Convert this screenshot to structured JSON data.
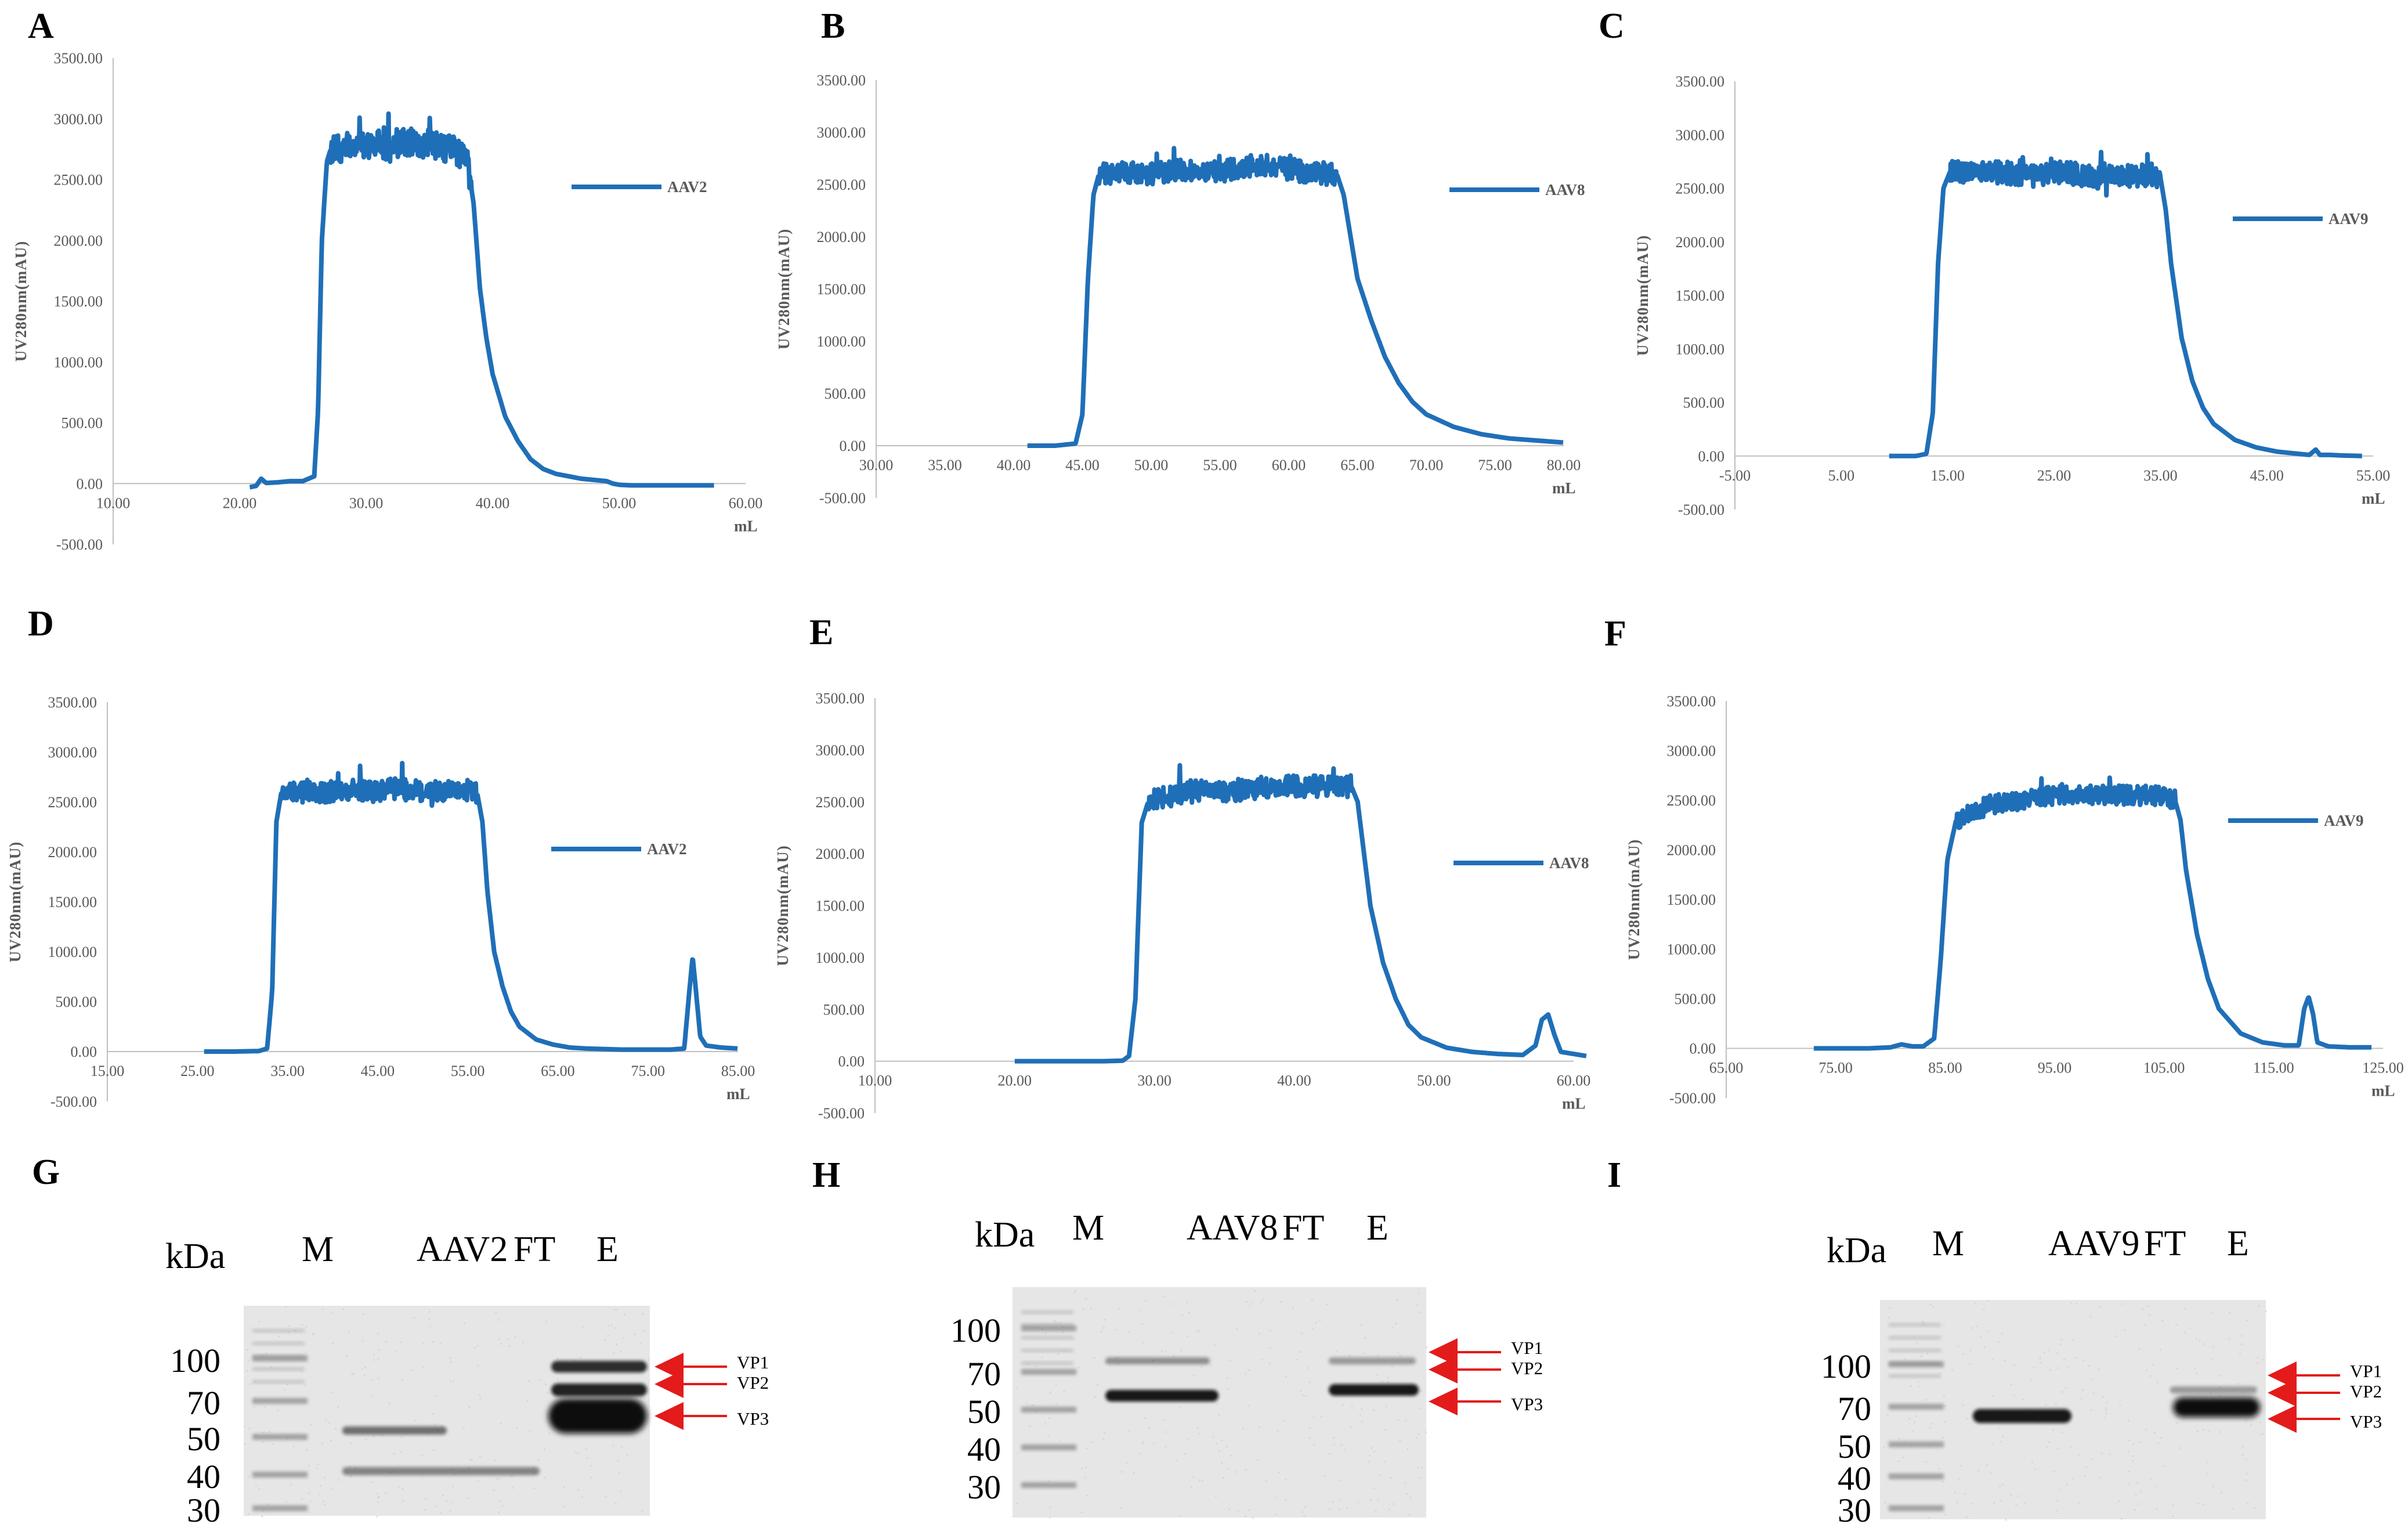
{
  "chart_data": [
    {
      "panel": "A",
      "type": "line",
      "xlabel": "mL",
      "ylabel": "UV280nm(mAU)",
      "xlim": [
        10,
        60
      ],
      "ylim": [
        -500,
        3500
      ],
      "xticks": [
        "10.00",
        "20.00",
        "30.00",
        "40.00",
        "50.00",
        "60.00"
      ],
      "yticks": [
        "-500.00",
        "0.00",
        "500.00",
        "1000.00",
        "1500.00",
        "2000.00",
        "2500.00",
        "3000.00",
        "3500.00"
      ],
      "legend": "right",
      "series": [
        {
          "name": "AAV2",
          "color": "#1f6fb8",
          "x": [
            20.8,
            21.3,
            21.7,
            22.1,
            23,
            24,
            25,
            25.9,
            26.2,
            26.5,
            26.9,
            27.2,
            28,
            29,
            30,
            31,
            32,
            33,
            34,
            35,
            36,
            37,
            38,
            38.5,
            39,
            39.5,
            40,
            41,
            42,
            43,
            44,
            45,
            46,
            47,
            48,
            49,
            49.5,
            50,
            51,
            52,
            54,
            56,
            57.5
          ],
          "y": [
            -30,
            -20,
            40,
            5,
            10,
            20,
            20,
            60,
            600,
            2000,
            2650,
            2750,
            2750,
            2800,
            2780,
            2800,
            2750,
            2820,
            2780,
            2800,
            2760,
            2750,
            2650,
            2300,
            1600,
            1200,
            900,
            550,
            350,
            200,
            120,
            80,
            60,
            40,
            30,
            20,
            0,
            -10,
            -15,
            -15,
            -15,
            -15,
            -15
          ],
          "noise_from": 27.2,
          "noise_to": 38.3,
          "noise_amp": 150
        }
      ]
    },
    {
      "panel": "B",
      "type": "line",
      "xlabel": "mL",
      "ylabel": "UV280nm(mAU)",
      "xlim": [
        30,
        80
      ],
      "ylim": [
        -500,
        3500
      ],
      "xticks": [
        "30.00",
        "35.00",
        "40.00",
        "45.00",
        "50.00",
        "55.00",
        "60.00",
        "65.00",
        "70.00",
        "75.00",
        "80.00"
      ],
      "yticks": [
        "-500.00",
        "0.00",
        "500.00",
        "1000.00",
        "1500.00",
        "2000.00",
        "2500.00",
        "3000.00",
        "3500.00"
      ],
      "legend": "right",
      "series": [
        {
          "name": "AAV8",
          "color": "#1f6fb8",
          "x": [
            41,
            43,
            44.5,
            45,
            45.4,
            45.8,
            46.2,
            47,
            48,
            50,
            52,
            54,
            56,
            58,
            60,
            62,
            63.5,
            64,
            64.5,
            65,
            66,
            67,
            68,
            69,
            70,
            72,
            74,
            76,
            78,
            80
          ],
          "y": [
            0,
            0,
            20,
            300,
            1600,
            2400,
            2600,
            2600,
            2620,
            2600,
            2650,
            2600,
            2650,
            2700,
            2650,
            2600,
            2600,
            2400,
            2000,
            1600,
            1200,
            850,
            600,
            420,
            300,
            180,
            110,
            70,
            50,
            30
          ],
          "noise_from": 46.2,
          "noise_to": 63.5,
          "noise_amp": 140
        }
      ]
    },
    {
      "panel": "C",
      "type": "line",
      "xlabel": "mL",
      "ylabel": "UV280nm(mAU)",
      "xlim": [
        -5,
        55
      ],
      "ylim": [
        -500,
        3500
      ],
      "xticks": [
        "-5.00",
        "5.00",
        "15.00",
        "25.00",
        "35.00",
        "45.00",
        "55.00"
      ],
      "yticks": [
        "-500.00",
        "0.00",
        "500.00",
        "1000.00",
        "1500.00",
        "2000.00",
        "2500.00",
        "3000.00",
        "3500.00"
      ],
      "legend": "right",
      "series": [
        {
          "name": "AAV9",
          "color": "#1f6fb8",
          "x": [
            9.5,
            12,
            13,
            13.6,
            14.1,
            14.6,
            15.2,
            17,
            20,
            23,
            26,
            29,
            32,
            34,
            35,
            35.5,
            36,
            37,
            38,
            39,
            40,
            42,
            44,
            46,
            48,
            49,
            49.6,
            50,
            51,
            52,
            54
          ],
          "y": [
            0,
            0,
            20,
            400,
            1800,
            2500,
            2650,
            2650,
            2650,
            2620,
            2650,
            2600,
            2620,
            2620,
            2600,
            2300,
            1800,
            1100,
            700,
            450,
            300,
            150,
            80,
            40,
            20,
            10,
            60,
            10,
            10,
            5,
            0
          ],
          "noise_from": 15.2,
          "noise_to": 35,
          "noise_amp": 140
        }
      ]
    },
    {
      "panel": "D",
      "type": "line",
      "xlabel": "mL",
      "ylabel": "UV280nm(mAU)",
      "xlim": [
        15,
        90
      ],
      "ylim": [
        -500,
        3500
      ],
      "xticks": [
        "15.00",
        "25.00",
        "35.00",
        "45.00",
        "55.00",
        "65.00",
        "75.00",
        "85.00"
      ],
      "yticks": [
        "-500.00",
        "0.00",
        "500.00",
        "1000.00",
        "1500.00",
        "2000.00",
        "2500.00",
        "3000.00",
        "3500.00"
      ],
      "legend": "right",
      "series": [
        {
          "name": "AAV2",
          "color": "#1f6fb8",
          "x": [
            26.5,
            30,
            33,
            34,
            34.6,
            35.1,
            35.7,
            38,
            41,
            44,
            47,
            50,
            53,
            56,
            59,
            59.6,
            60.2,
            61,
            62,
            63,
            64,
            66,
            68,
            70,
            72,
            74,
            76,
            78,
            80,
            82,
            83.6,
            84.2,
            84.6,
            85,
            85.5,
            86.2,
            88,
            90
          ],
          "y": [
            0,
            0,
            5,
            30,
            600,
            2300,
            2600,
            2600,
            2600,
            2620,
            2600,
            2650,
            2600,
            2620,
            2580,
            2300,
            1600,
            1000,
            650,
            400,
            250,
            120,
            70,
            40,
            30,
            25,
            20,
            20,
            20,
            20,
            30,
            600,
            950,
            600,
            150,
            60,
            40,
            30
          ],
          "noise_from": 35.7,
          "noise_to": 59,
          "noise_amp": 140
        }
      ]
    },
    {
      "panel": "E",
      "type": "line",
      "xlabel": "mL",
      "ylabel": "UV280nm(mAU)",
      "xlim": [
        10,
        65
      ],
      "ylim": [
        -500,
        3500
      ],
      "xticks": [
        "10.00",
        "20.00",
        "30.00",
        "40.00",
        "50.00",
        "60.00"
      ],
      "yticks": [
        "-500.00",
        "0.00",
        "500.00",
        "1000.00",
        "1500.00",
        "2000.00",
        "2500.00",
        "3000.00",
        "3500.00"
      ],
      "legend": "right",
      "series": [
        {
          "name": "AAV8",
          "color": "#1f6fb8",
          "x": [
            21,
            24,
            28,
            29.5,
            30,
            30.5,
            31,
            31.5,
            33,
            35,
            38,
            41,
            44,
            46,
            47.5,
            48,
            48.5,
            49,
            50,
            51,
            52,
            53,
            55,
            57,
            59,
            61,
            62,
            62.5,
            63,
            63.5,
            64,
            66
          ],
          "y": [
            0,
            0,
            0,
            5,
            50,
            600,
            2300,
            2500,
            2550,
            2600,
            2600,
            2650,
            2650,
            2650,
            2650,
            2500,
            2000,
            1500,
            950,
            600,
            350,
            230,
            130,
            90,
            70,
            60,
            150,
            400,
            450,
            250,
            90,
            50
          ],
          "noise_from": 31.5,
          "noise_to": 47.5,
          "noise_amp": 140
        }
      ]
    },
    {
      "panel": "F",
      "type": "line",
      "xlabel": "mL",
      "ylabel": "UV280nm(mAU)",
      "xlim": [
        65,
        125
      ],
      "ylim": [
        -500,
        3500
      ],
      "xticks": [
        "65.00",
        "75.00",
        "85.00",
        "95.00",
        "105.00",
        "115.00",
        "125.00"
      ],
      "yticks": [
        "-500.00",
        "0.00",
        "500.00",
        "1000.00",
        "1500.00",
        "2000.00",
        "2500.00",
        "3000.00",
        "3500.00"
      ],
      "legend": "right",
      "series": [
        {
          "name": "AAV9",
          "color": "#1f6fb8",
          "x": [
            73,
            78,
            80,
            81,
            82,
            83,
            84,
            84.6,
            85.2,
            86,
            89,
            92,
            95,
            98,
            101,
            104,
            106,
            106.5,
            107,
            108,
            109,
            110,
            112,
            114,
            116,
            117.3,
            117.8,
            118.2,
            118.6,
            119,
            120,
            122,
            124
          ],
          "y": [
            0,
            0,
            10,
            40,
            20,
            20,
            100,
            900,
            1900,
            2300,
            2450,
            2500,
            2550,
            2550,
            2550,
            2550,
            2500,
            2300,
            1800,
            1150,
            700,
            400,
            150,
            60,
            30,
            30,
            400,
            520,
            350,
            60,
            20,
            10,
            10
          ],
          "noise_from": 86,
          "noise_to": 106,
          "noise_amp": 130
        }
      ]
    }
  ],
  "panels": {
    "A": "A",
    "B": "B",
    "C": "C",
    "D": "D",
    "E": "E",
    "F": "F",
    "G": "G",
    "H": "H",
    "I": "I"
  },
  "blots": [
    {
      "panel": "G",
      "unit": "kDa",
      "lanes": [
        "M",
        "AAV2",
        "FT",
        "E"
      ],
      "markers": [
        "100",
        "70",
        "50",
        "40",
        "30"
      ],
      "bands": [
        "VP1",
        "VP2",
        "VP3"
      ]
    },
    {
      "panel": "H",
      "unit": "kDa",
      "lanes": [
        "M",
        "AAV8",
        "FT",
        "E"
      ],
      "markers": [
        "100",
        "70",
        "50",
        "40",
        "30"
      ],
      "bands": [
        "VP1",
        "VP2",
        "VP3"
      ]
    },
    {
      "panel": "I",
      "unit": "kDa",
      "lanes": [
        "M",
        "AAV9",
        "FT",
        "E"
      ],
      "markers": [
        "100",
        "70",
        "50",
        "40",
        "30"
      ],
      "bands": [
        "VP1",
        "VP2",
        "VP3"
      ]
    }
  ],
  "colors": {
    "line": "#1f6fb8",
    "arrow": "#e31b1b",
    "axis": "#bfbfbf",
    "tick_text": "#595959"
  }
}
